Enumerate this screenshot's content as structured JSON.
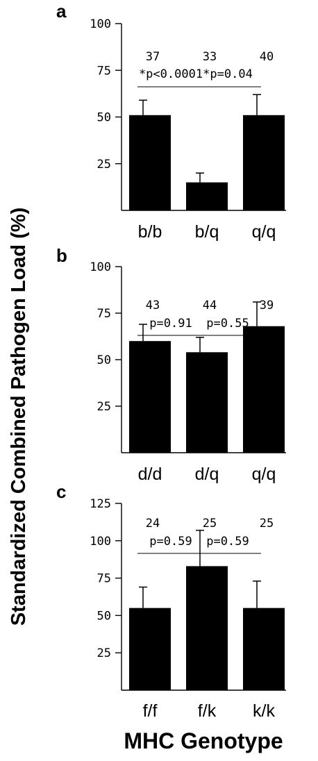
{
  "chart_data": [
    {
      "type": "bar",
      "panel": "a",
      "categories": [
        "b/b",
        "b/q",
        "q/q"
      ],
      "values": [
        51,
        15,
        51
      ],
      "errors": [
        8,
        5,
        11
      ],
      "sample_sizes": [
        "37",
        "33",
        "40"
      ],
      "yticks": [
        25,
        50,
        75,
        100
      ],
      "ylim": [
        0,
        100
      ],
      "comparisons": [
        {
          "from": 0,
          "to": 1,
          "label": "*p<0.0001"
        },
        {
          "from": 1,
          "to": 2,
          "label": "*p=0.04"
        }
      ]
    },
    {
      "type": "bar",
      "panel": "b",
      "categories": [
        "d/d",
        "d/q",
        "q/q"
      ],
      "values": [
        60,
        54,
        68
      ],
      "errors": [
        9,
        8,
        13
      ],
      "sample_sizes": [
        "43",
        "44",
        "39"
      ],
      "yticks": [
        25,
        50,
        75,
        100
      ],
      "ylim": [
        0,
        100
      ],
      "comparisons": [
        {
          "from": 0,
          "to": 1,
          "label": "p=0.91"
        },
        {
          "from": 1,
          "to": 2,
          "label": "p=0.55"
        }
      ]
    },
    {
      "type": "bar",
      "panel": "c",
      "categories": [
        "f/f",
        "f/k",
        "k/k"
      ],
      "values": [
        55,
        83,
        55
      ],
      "errors": [
        14,
        24,
        18
      ],
      "sample_sizes": [
        "24",
        "25",
        "25"
      ],
      "yticks": [
        25,
        50,
        75,
        100,
        125
      ],
      "ylim": [
        0,
        125
      ],
      "comparisons": [
        {
          "from": 0,
          "to": 1,
          "label": "p=0.59"
        },
        {
          "from": 1,
          "to": 2,
          "label": "p=0.59"
        }
      ]
    }
  ],
  "ylabel": "Standardized Combined Pathogen Load (%)",
  "xlabel": "MHC Genotype",
  "colors": {
    "bar": "#000000",
    "axis": "#000000",
    "background": "#ffffff"
  }
}
